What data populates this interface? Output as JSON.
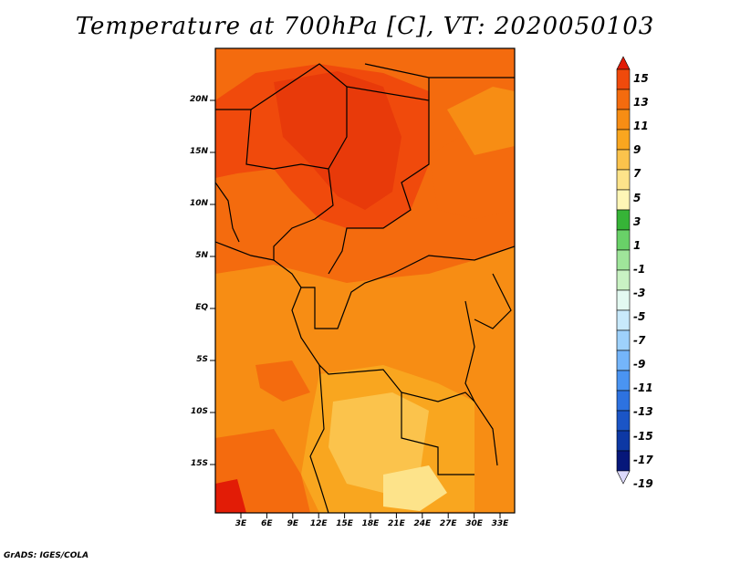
{
  "title": "Temperature at 700hPa [C], VT: 2020050103",
  "credit": "GrADS: IGES/COLA",
  "map": {
    "lat_ticks": [
      "20N",
      "15N",
      "10N",
      "5N",
      "EQ",
      "5S",
      "10S",
      "15S"
    ],
    "lon_ticks": [
      "3E",
      "6E",
      "9E",
      "12E",
      "15E",
      "18E",
      "21E",
      "24E",
      "27E",
      "30E",
      "33E"
    ]
  },
  "colorbar": {
    "labels": [
      "15",
      "13",
      "11",
      "9",
      "7",
      "5",
      "3",
      "1",
      "-1",
      "-3",
      "-5",
      "-7",
      "-9",
      "-11",
      "-13",
      "-15",
      "-17",
      "-19"
    ],
    "colors": [
      "#e21c06",
      "#f04a0c",
      "#f46b0e",
      "#f78d14",
      "#f9a61f",
      "#fbc34c",
      "#fde38a",
      "#fef6b6",
      "#36b437",
      "#69d168",
      "#9fe59a",
      "#c9f2c3",
      "#e3f9f1",
      "#c8e9fb",
      "#9ed1fb",
      "#74b5fa",
      "#4a94f2",
      "#2d72e0",
      "#1b55c6",
      "#0d38a4",
      "#06177a",
      "#dcd9fb"
    ]
  }
}
